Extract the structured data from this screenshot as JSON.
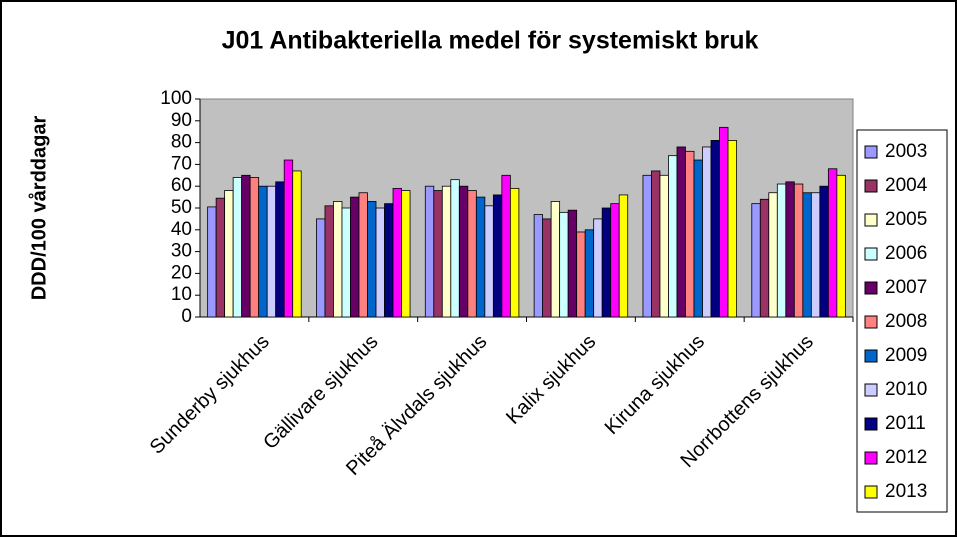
{
  "chart_data": {
    "type": "bar",
    "title": "J01 Antibakteriella medel för systemiskt bruk",
    "y_label": "DDD/100 vårddagar",
    "categories": [
      "Sunderby sjukhus",
      "Gällivare sjukhus",
      "Piteå Älvdals sjukhus",
      "Kalix sjukhus",
      "Kiruna sjukhus",
      "Norrbottens sjukhus"
    ],
    "series": [
      {
        "name": "2003",
        "color": "#9999FF",
        "values": [
          50.5,
          45,
          60,
          47,
          65,
          52
        ]
      },
      {
        "name": "2004",
        "color": "#993366",
        "values": [
          54.5,
          51,
          58,
          45,
          67,
          54
        ]
      },
      {
        "name": "2005",
        "color": "#FFFFCC",
        "values": [
          58,
          53,
          60,
          53,
          65,
          57
        ]
      },
      {
        "name": "2006",
        "color": "#CCFFFF",
        "values": [
          64,
          50,
          63,
          48,
          74,
          61
        ]
      },
      {
        "name": "2007",
        "color": "#660066",
        "values": [
          65,
          55,
          60,
          49,
          78,
          62
        ]
      },
      {
        "name": "2008",
        "color": "#FF8080",
        "values": [
          64,
          57,
          58,
          39,
          76,
          61
        ]
      },
      {
        "name": "2009",
        "color": "#0066CC",
        "values": [
          60,
          53,
          55,
          40,
          72,
          57
        ]
      },
      {
        "name": "2010",
        "color": "#CCCCFF",
        "values": [
          60,
          50,
          51,
          45,
          78,
          57
        ]
      },
      {
        "name": "2011",
        "color": "#000080",
        "values": [
          62,
          52,
          56,
          50,
          81,
          60
        ]
      },
      {
        "name": "2012",
        "color": "#FF00FF",
        "values": [
          72,
          59,
          65,
          52,
          87,
          68
        ]
      },
      {
        "name": "2013",
        "color": "#FFFF00",
        "values": [
          67,
          58,
          59,
          56,
          81,
          65
        ]
      }
    ],
    "ylim": [
      0,
      100
    ],
    "yticks": [
      0,
      10,
      20,
      30,
      40,
      50,
      60,
      70,
      80,
      90,
      100
    ],
    "grid": false,
    "plot_background": "#C0C0C0",
    "legend": "right"
  }
}
